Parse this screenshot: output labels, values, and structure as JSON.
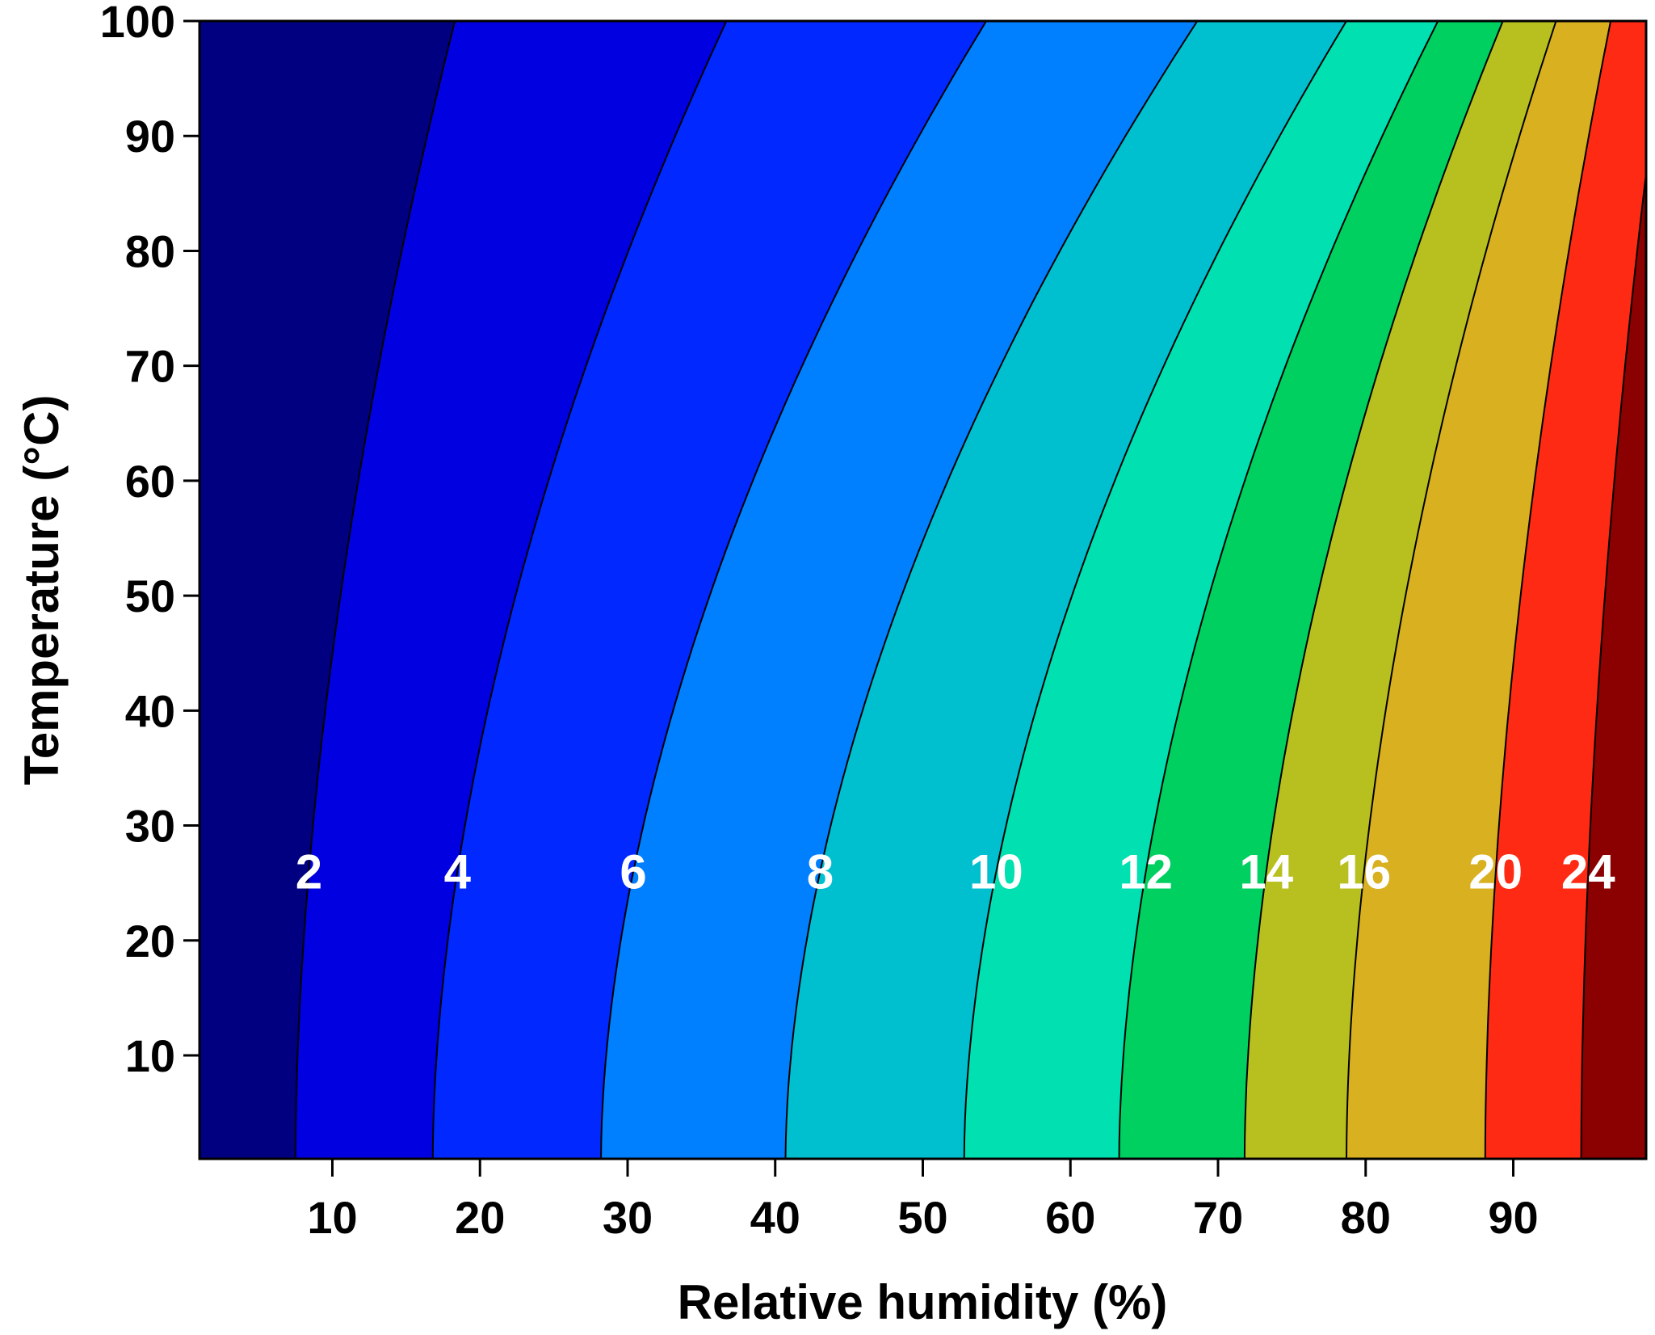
{
  "chart_data": {
    "type": "contour",
    "xlabel": "Relative humidity (%)",
    "ylabel": "Temperature (°C)",
    "xlim": [
      1,
      99
    ],
    "ylim": [
      1,
      100
    ],
    "xticks": [
      10,
      20,
      30,
      40,
      50,
      60,
      70,
      80,
      90
    ],
    "yticks": [
      10,
      20,
      30,
      40,
      50,
      60,
      70,
      80,
      90,
      100
    ],
    "grid": false,
    "label_temperature": 26,
    "contour_lines": [
      {
        "level": 2,
        "label": "2",
        "x_at_bottom": 7.5,
        "x_at_top": 18.3
      },
      {
        "level": 4,
        "label": "4",
        "x_at_bottom": 16.8,
        "x_at_top": 36.7
      },
      {
        "level": 6,
        "label": "6",
        "x_at_bottom": 28.2,
        "x_at_top": 54.3
      },
      {
        "level": 8,
        "label": "8",
        "x_at_bottom": 40.7,
        "x_at_top": 68.6
      },
      {
        "level": 10,
        "label": "10",
        "x_at_bottom": 52.8,
        "x_at_top": 78.7
      },
      {
        "level": 12,
        "label": "12",
        "x_at_bottom": 63.3,
        "x_at_top": 84.9
      },
      {
        "level": 14,
        "label": "14",
        "x_at_bottom": 71.8,
        "x_at_top": 89.3
      },
      {
        "level": 16,
        "label": "16",
        "x_at_bottom": 78.7,
        "x_at_top": 92.9
      },
      {
        "level": 20,
        "label": "20",
        "x_at_bottom": 88.1,
        "x_at_top": 96.6
      },
      {
        "level": 24,
        "label": "24",
        "x_at_bottom": 94.6,
        "x_at_top": 100.3
      }
    ],
    "fill_colors": [
      "#000080",
      "#0000e0",
      "#0028ff",
      "#0080ff",
      "#00c0d0",
      "#00e0b0",
      "#00d060",
      "#b8c020",
      "#d8b020",
      "#ff2a14",
      "#8b0000"
    ]
  }
}
